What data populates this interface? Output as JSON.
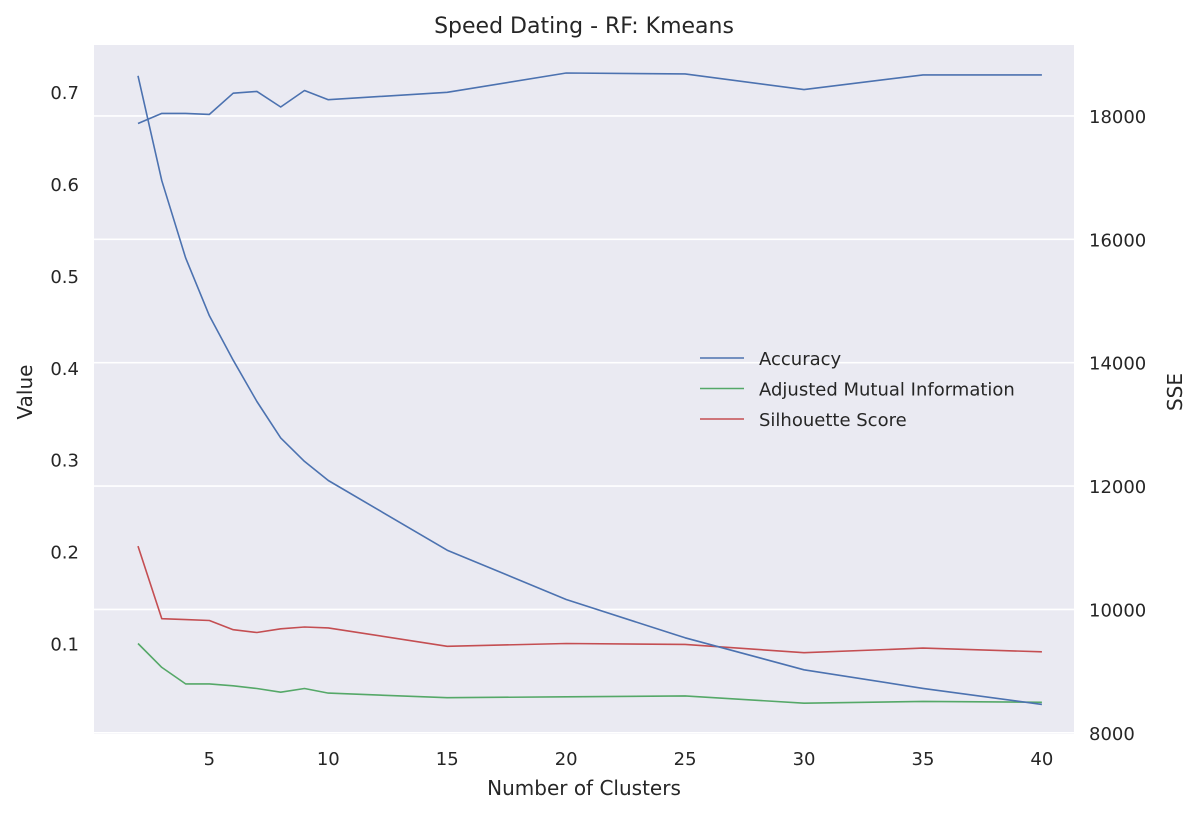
{
  "chart_data": {
    "type": "line",
    "title": "Speed Dating - RF: Kmeans",
    "xlabel": "Number of Clusters",
    "ylabel": "Value",
    "y2label": "SSE",
    "xlim": [
      0.15,
      41.35
    ],
    "ylim": [
      0.0025,
      0.7525
    ],
    "y2lim": [
      7980,
      19150
    ],
    "xticks": [
      5,
      10,
      15,
      20,
      25,
      30,
      35,
      40
    ],
    "yticks": [
      0.1,
      0.2,
      0.3,
      0.4,
      0.5,
      0.6,
      0.7
    ],
    "y2ticks": [
      8000,
      10000,
      12000,
      14000,
      16000,
      18000
    ],
    "grid": true,
    "legend_position": "center-right",
    "x": [
      2,
      3,
      4,
      5,
      6,
      7,
      8,
      9,
      10,
      15,
      20,
      25,
      30,
      35,
      40
    ],
    "series": [
      {
        "name": "Accuracy",
        "axis": "left",
        "color": "#4c72b0",
        "values": [
          0.667,
          0.678,
          0.678,
          0.677,
          0.7,
          0.702,
          0.685,
          0.703,
          0.693,
          0.701,
          0.722,
          0.721,
          0.704,
          0.72,
          0.72
        ]
      },
      {
        "name": "Adjusted Mutual Information",
        "axis": "left",
        "color": "#55a868",
        "values": [
          0.101,
          0.075,
          0.057,
          0.057,
          0.055,
          0.052,
          0.048,
          0.052,
          0.047,
          0.042,
          0.043,
          0.044,
          0.036,
          0.038,
          0.037
        ]
      },
      {
        "name": "Silhouette Score",
        "axis": "left",
        "color": "#c44e52",
        "values": [
          0.207,
          0.128,
          0.127,
          0.126,
          0.116,
          0.113,
          0.117,
          0.119,
          0.118,
          0.098,
          0.101,
          0.1,
          0.091,
          0.096,
          0.092
        ]
      },
      {
        "name": "SSE",
        "axis": "right",
        "color": "#4c72b0",
        "values": [
          18650,
          16950,
          15700,
          14760,
          14040,
          13370,
          12780,
          12400,
          12090,
          10960,
          10160,
          9540,
          9020,
          8720,
          8460
        ]
      }
    ]
  }
}
